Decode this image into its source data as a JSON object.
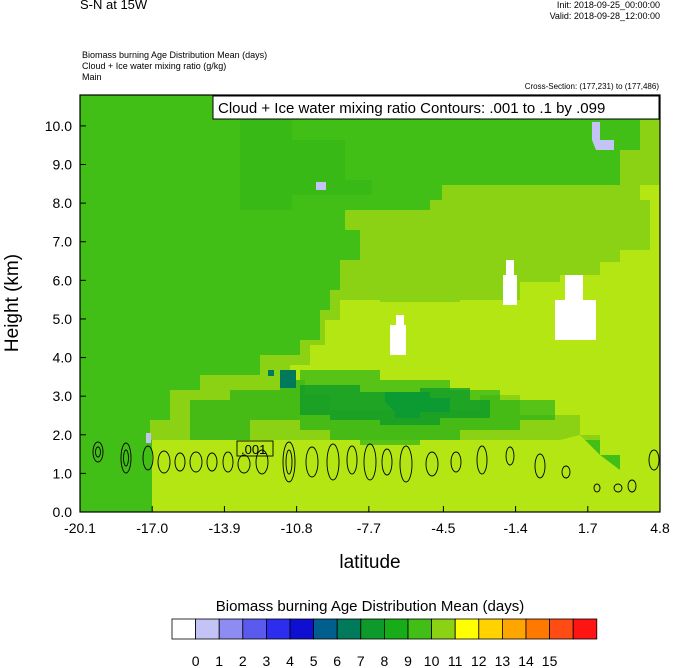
{
  "header": {
    "title": "S-N at 15W",
    "init": "Init: 2018-09-25_00:00:00",
    "valid": "Valid: 2018-09-28_12:00:00",
    "field1": "Biomass burning Age Distribution Mean    (days)",
    "field2": "Cloud + Ice water mixing ratio    (g/kg)",
    "field3": "Main",
    "cross_section": "Cross-Section: (177,231) to (177,486)"
  },
  "chart_data": {
    "type": "heatmap",
    "title": "S-N at 15W",
    "xlabel": "latitude",
    "ylabel": "Height (km)",
    "xlim": [
      -20.1,
      4.8
    ],
    "ylim": [
      0.0,
      10.8
    ],
    "x_ticks": [
      -20.1,
      -17.0,
      -13.9,
      -10.8,
      -7.7,
      -4.5,
      -1.4,
      1.7,
      4.8
    ],
    "x_tick_labels": [
      "-20.1",
      "-17.0",
      "-13.9",
      "-10.8",
      "-7.7",
      "-4.5",
      "-1.4",
      "1.7",
      "4.8"
    ],
    "y_ticks": [
      0,
      1,
      2,
      3,
      4,
      5,
      6,
      7,
      8,
      9,
      10
    ],
    "y_tick_labels": [
      "0.0",
      "1.0",
      "2.0",
      "3.0",
      "4.0",
      "5.0",
      "6.0",
      "7.0",
      "8.0",
      "9.0",
      "10.0"
    ],
    "contour_info": "Cloud + Ice water mixing ratio Contours: .001 to .1 by .099",
    "contour_label": ".001",
    "colorbar": {
      "title": "Biomass burning Age Distribution Mean  (days)",
      "labels": [
        "0",
        "1",
        "2",
        "3",
        "4",
        "5",
        "6",
        "7",
        "8",
        "9",
        "10",
        "11",
        "12",
        "13",
        "14",
        "15"
      ],
      "colors": [
        "#ffffff",
        "#c3c3f5",
        "#8c8cf2",
        "#5a5aee",
        "#2d2df0",
        "#0f0fd2",
        "#005f8c",
        "#007a5a",
        "#0e9a2a",
        "#18ac18",
        "#42bf16",
        "#8cd214",
        "#ffff00",
        "#ffd200",
        "#ffa500",
        "#ff7800",
        "#ff4b14",
        "#ff1414"
      ]
    },
    "regions": [
      {
        "age": 9,
        "color": "#42bf16",
        "desc": "upper background"
      },
      {
        "age": 10,
        "color": "#8cd214",
        "desc": "middle band"
      },
      {
        "age": 11,
        "color": "#b4e614",
        "desc": "lower band"
      },
      {
        "age": 8,
        "color": "#18ac18",
        "desc": "layer near 3 km"
      },
      {
        "age": 7,
        "color": "#0e9a2a",
        "desc": "core near 3 km"
      },
      {
        "age": 0,
        "color": "#ffffff",
        "desc": "clean air pockets"
      },
      {
        "age": 1,
        "color": "#c3c3f5",
        "desc": "small pockets"
      }
    ],
    "grid": false
  }
}
